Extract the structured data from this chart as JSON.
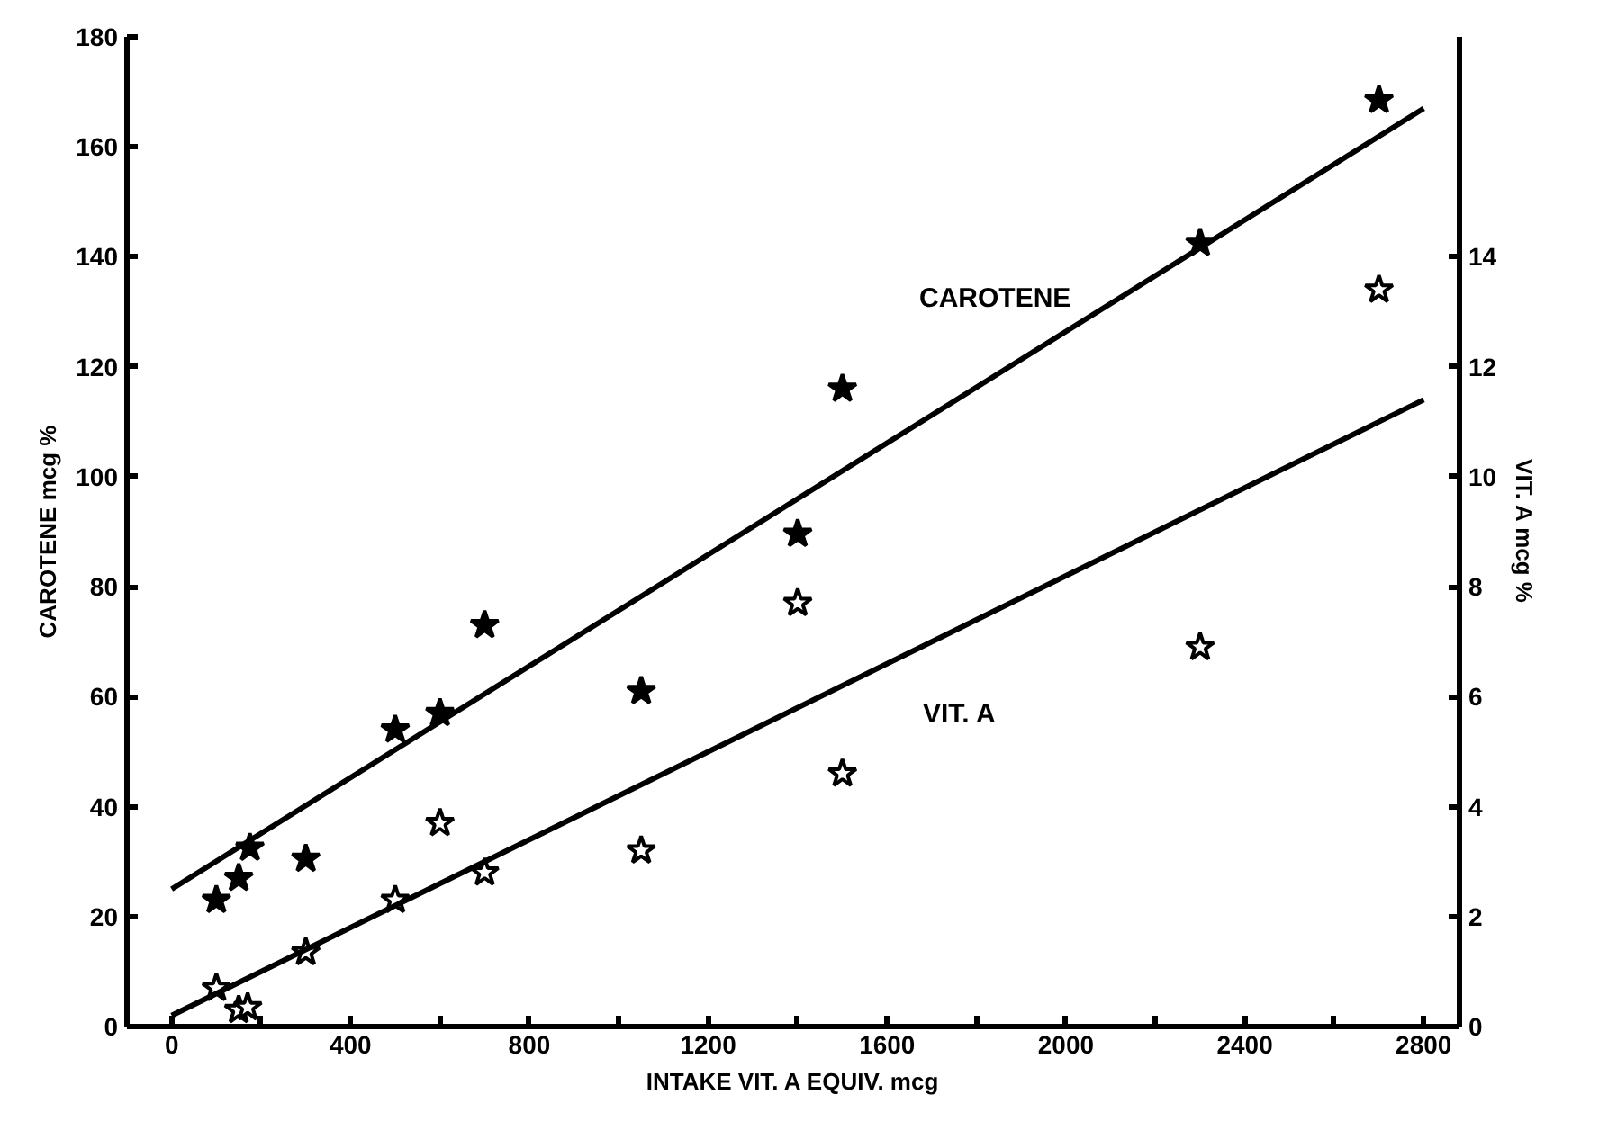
{
  "chart_data": {
    "type": "scatter",
    "xlabel": "INTAKE VIT. A EQUIV. mcg",
    "ylabel": "CAROTENE mcg %",
    "y2label": "VIT. A mcg %",
    "xlim": [
      -100,
      2880
    ],
    "ylim": [
      0,
      180
    ],
    "y2lim": [
      0,
      18
    ],
    "xticks": [
      0,
      {
        "value": 200,
        "label": null
      },
      400,
      {
        "value": 600,
        "label": null
      },
      800,
      {
        "value": 1000,
        "label": null
      },
      1200,
      {
        "value": 1400,
        "label": null
      },
      1600,
      {
        "value": 1800,
        "label": null
      },
      2000,
      {
        "value": 2200,
        "label": null
      },
      2400,
      {
        "value": 2600,
        "label": null
      },
      2800
    ],
    "yticks": [
      0,
      20,
      40,
      60,
      80,
      100,
      120,
      140,
      160,
      180
    ],
    "y2ticks": [
      0,
      2,
      4,
      6,
      8,
      10,
      12,
      14
    ],
    "grid": false,
    "series": [
      {
        "marker": "star",
        "color": "#000000",
        "x": [
          100,
          150,
          175,
          300,
          500,
          600,
          700,
          1050,
          1400,
          1500,
          2300,
          2700
        ],
        "values": [
          23,
          27,
          32.5,
          30.5,
          54,
          57,
          73,
          61,
          89.6,
          116,
          142.5,
          168.5
        ]
      },
      {
        "marker": "star",
        "color": "#ffffff",
        "axis": "y2",
        "x": [
          100,
          150,
          170,
          300,
          500,
          600,
          700,
          1050,
          1400,
          1500,
          2300,
          2700
        ],
        "values": [
          0.7,
          0.3,
          0.35,
          1.35,
          2.3,
          3.7,
          2.8,
          3.2,
          7.7,
          4.6,
          6.9,
          13.4
        ]
      },
      {
        "type": "line",
        "color": "#000000",
        "x": [
          0,
          2800
        ],
        "values": [
          25,
          167
        ]
      },
      {
        "type": "line",
        "color": "#000000",
        "axis": "y2",
        "x": [
          0,
          2800
        ],
        "values": [
          0.2,
          11.4
        ]
      }
    ],
    "annotations": [
      "CAROTENE",
      "VIT. A"
    ]
  }
}
